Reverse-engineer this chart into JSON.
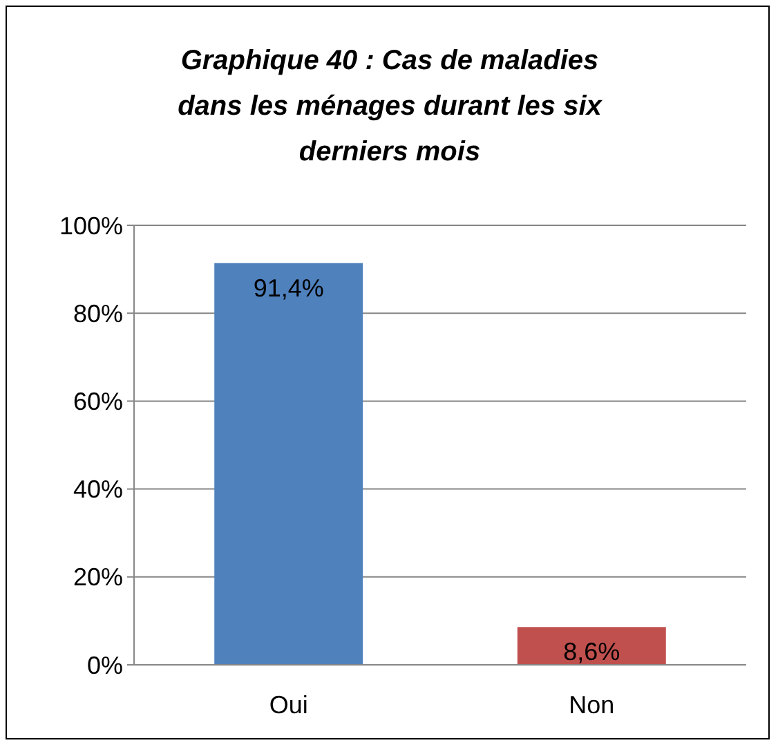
{
  "chart_data": {
    "type": "bar",
    "title": "Graphique 40 : Cas de maladies dans les ménages durant les six derniers mois",
    "categories": [
      "Oui",
      "Non"
    ],
    "values": [
      91.4,
      8.6
    ],
    "colors": [
      "#4f81bd",
      "#c0504d"
    ],
    "value_labels": [
      "91,4%",
      "8,6%"
    ],
    "ylim": [
      0,
      100
    ],
    "yticks": [
      {
        "value": 0,
        "label": "0%"
      },
      {
        "value": 20,
        "label": "20%"
      },
      {
        "value": 40,
        "label": "40%"
      },
      {
        "value": 60,
        "label": "60%"
      },
      {
        "value": 80,
        "label": "80%"
      },
      {
        "value": 100,
        "label": "100%"
      }
    ],
    "grid": "y"
  }
}
